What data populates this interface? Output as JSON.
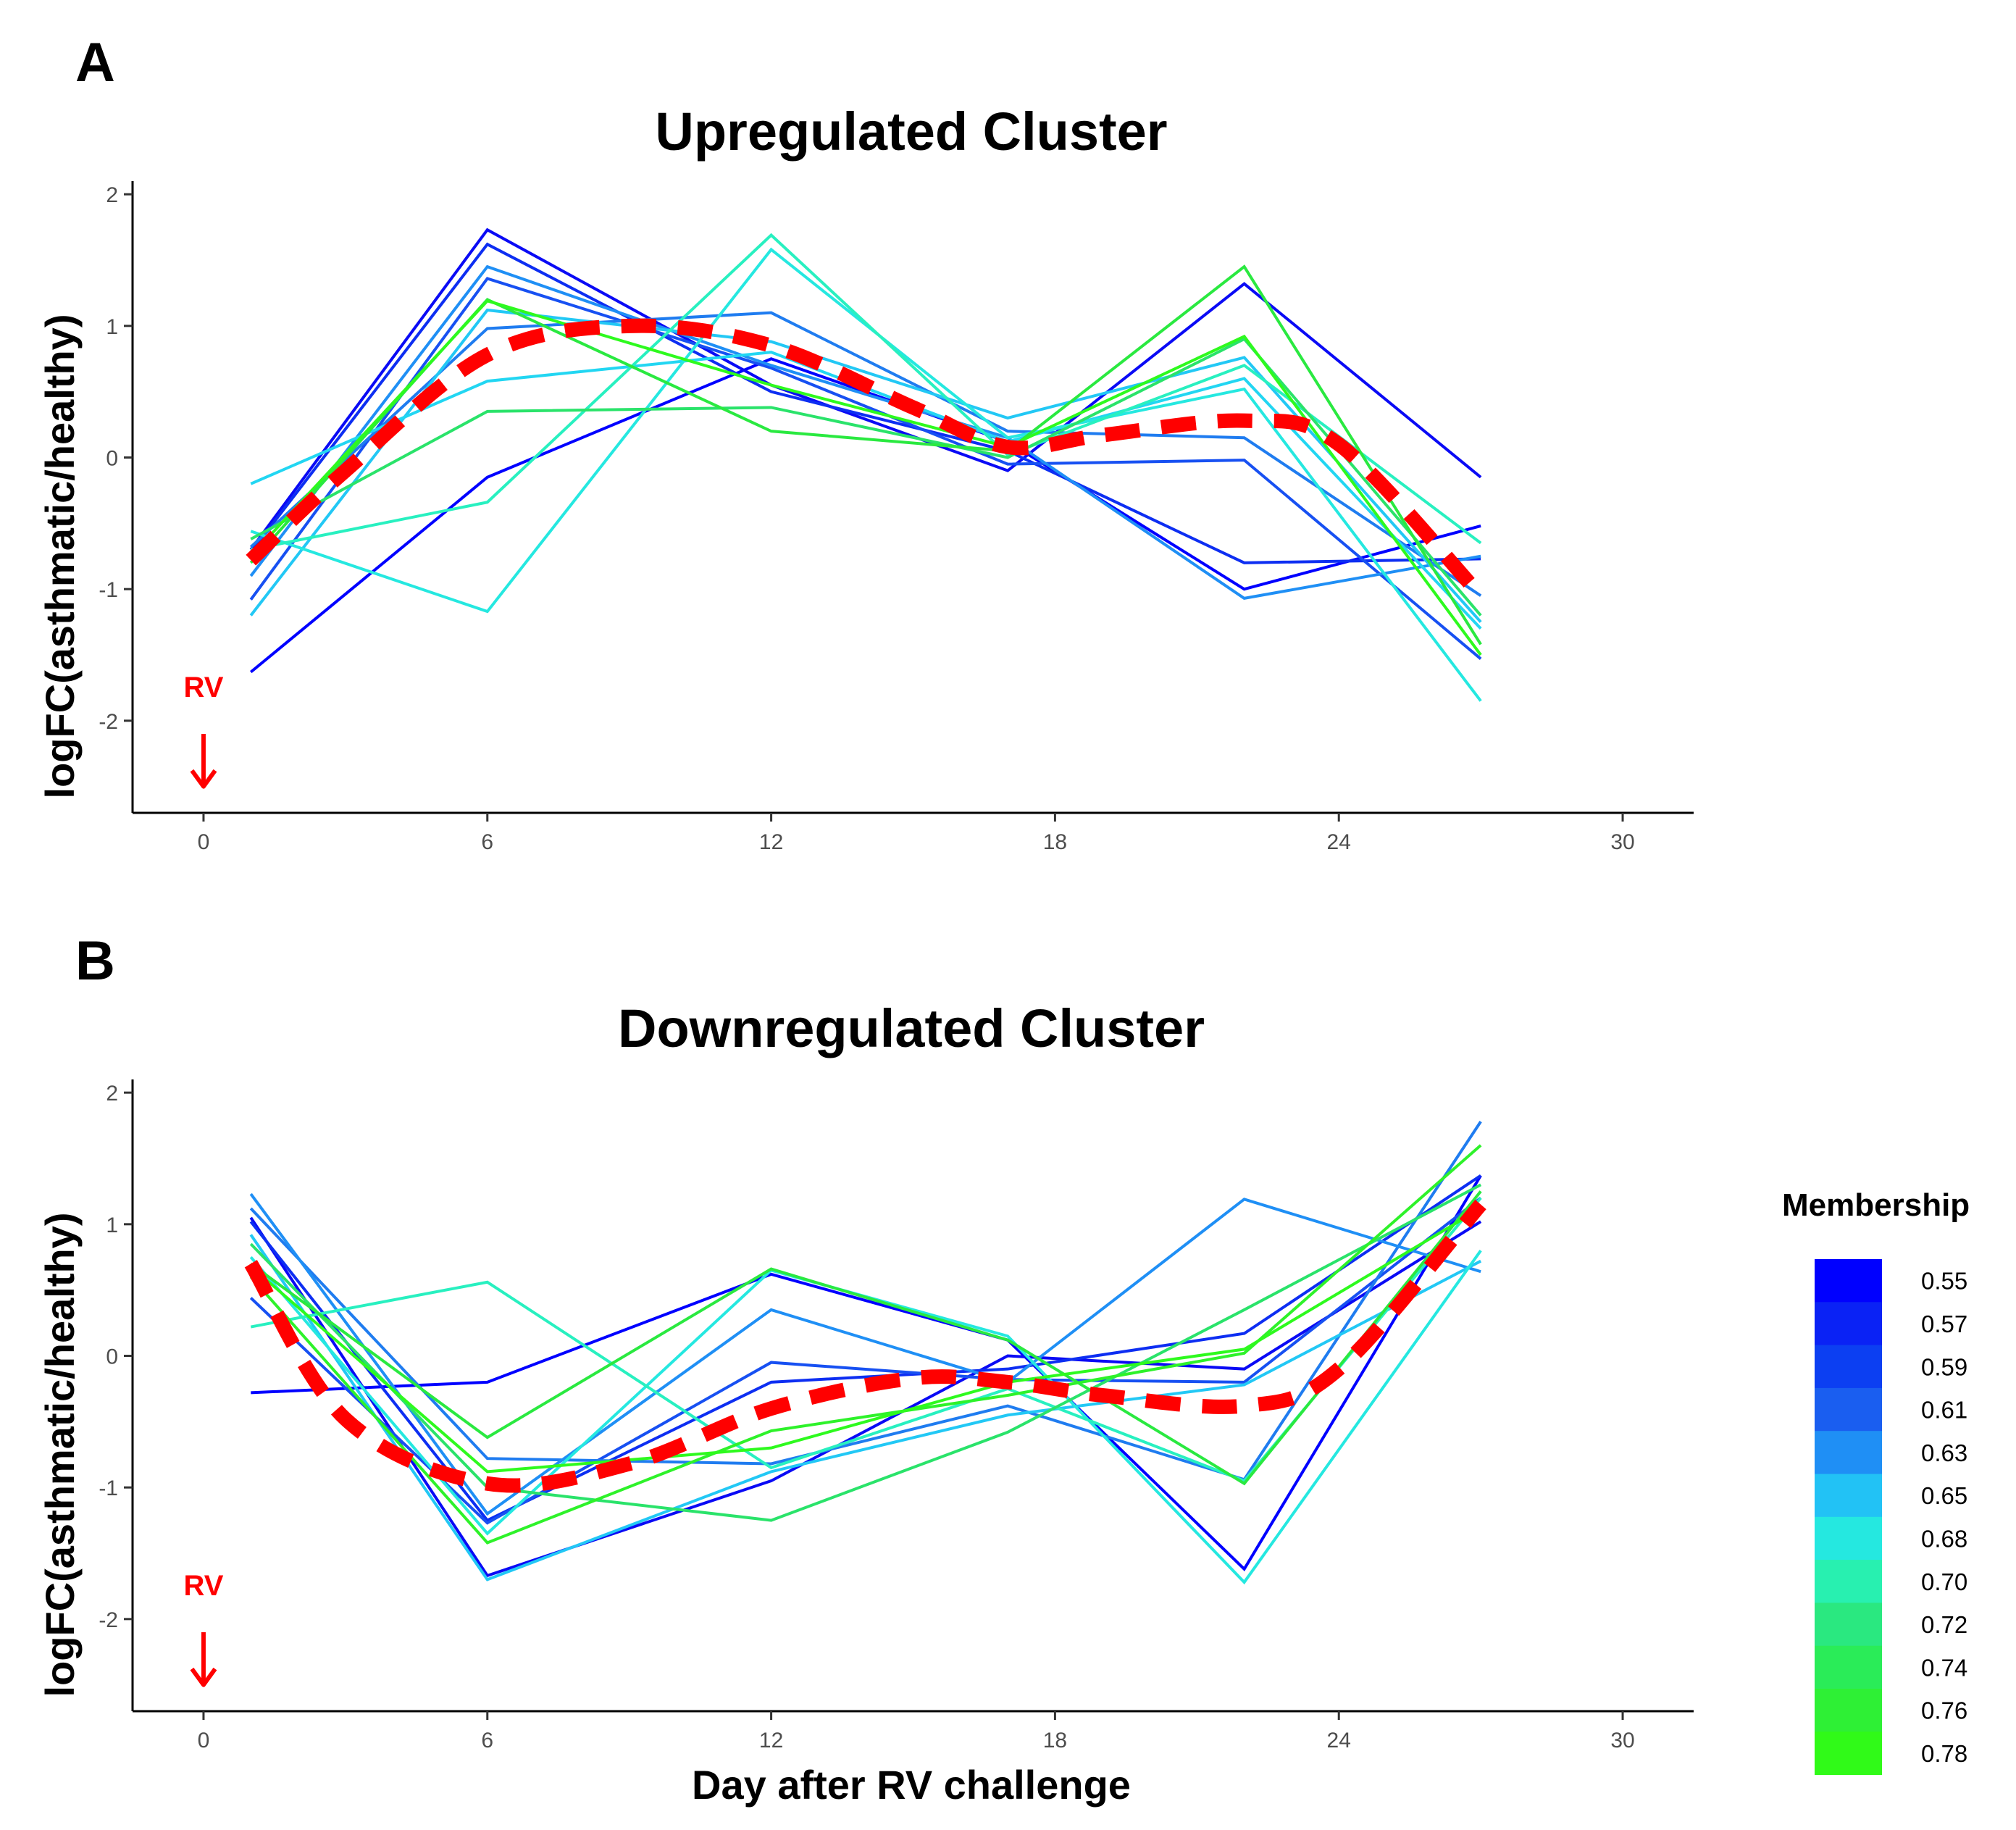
{
  "chart_data": [
    {
      "type": "line",
      "panel_label": "A",
      "title": "Upregulated Cluster",
      "xlabel": "",
      "ylabel": "logFC(asthmatic/healthy)",
      "x": [
        1,
        6,
        12,
        17,
        22,
        27
      ],
      "xticks": [
        0,
        6,
        12,
        18,
        24,
        30
      ],
      "yticks": [
        2,
        1,
        0,
        -1,
        -2
      ],
      "xlim": [
        -1.5,
        31.5
      ],
      "ylim": [
        -2.7,
        2.1
      ],
      "annotation": {
        "label": "RV",
        "x": 0
      },
      "series": [
        {
          "membership": 0.55,
          "color": "#0000ff",
          "values": [
            -1.63,
            -0.15,
            0.75,
            0.12,
            -1.0,
            -0.52
          ]
        },
        {
          "membership": 0.56,
          "color": "#0a0af5",
          "values": [
            -0.7,
            1.73,
            0.55,
            -0.1,
            1.32,
            -0.15
          ]
        },
        {
          "membership": 0.58,
          "color": "#0d2ef2",
          "values": [
            -0.72,
            1.62,
            0.5,
            0.05,
            -0.8,
            -0.77
          ]
        },
        {
          "membership": 0.6,
          "color": "#1750f2",
          "values": [
            -1.08,
            1.36,
            0.68,
            -0.05,
            -0.02,
            -1.53
          ]
        },
        {
          "membership": 0.62,
          "color": "#1f7cf0",
          "values": [
            -0.68,
            0.98,
            1.1,
            0.2,
            0.15,
            -1.05
          ]
        },
        {
          "membership": 0.63,
          "color": "#1f8ff5",
          "values": [
            -0.9,
            1.45,
            0.7,
            0.15,
            -1.07,
            -0.75
          ]
        },
        {
          "membership": 0.65,
          "color": "#22c8f5",
          "values": [
            -1.2,
            1.12,
            0.88,
            0.3,
            0.76,
            -1.25
          ]
        },
        {
          "membership": 0.66,
          "color": "#22d6f2",
          "values": [
            -0.2,
            0.58,
            0.8,
            0.12,
            0.6,
            -1.3
          ]
        },
        {
          "membership": 0.68,
          "color": "#25e8e0",
          "values": [
            -0.56,
            -1.17,
            1.58,
            0.15,
            0.52,
            -1.85
          ]
        },
        {
          "membership": 0.7,
          "color": "#28f0c0",
          "values": [
            -0.7,
            -0.34,
            1.69,
            0.02,
            0.7,
            -0.65
          ]
        },
        {
          "membership": 0.72,
          "color": "#2ae36a",
          "values": [
            -0.62,
            0.35,
            0.38,
            0.0,
            0.9,
            -1.2
          ]
        },
        {
          "membership": 0.75,
          "color": "#2ae940",
          "values": [
            -0.8,
            1.2,
            0.2,
            0.05,
            1.45,
            -1.42
          ]
        },
        {
          "membership": 0.78,
          "color": "#2efa1e",
          "values": [
            -0.75,
            1.19,
            0.55,
            0.08,
            0.92,
            -1.5
          ]
        }
      ],
      "centroid": {
        "color": "#ff0000",
        "style": "dashed",
        "x": [
          1,
          3,
          6,
          9,
          12,
          15,
          17,
          19,
          22,
          24,
          27
        ],
        "values": [
          -0.78,
          -0.1,
          0.78,
          1.0,
          0.85,
          0.38,
          0.08,
          0.17,
          0.28,
          0.1,
          -1.05
        ]
      }
    },
    {
      "type": "line",
      "panel_label": "B",
      "title": "Downregulated Cluster",
      "xlabel": "Day after RV challenge",
      "ylabel": "logFC(asthmatic/healthy)",
      "x": [
        1,
        6,
        12,
        17,
        22,
        27
      ],
      "xticks": [
        0,
        6,
        12,
        18,
        24,
        30
      ],
      "yticks": [
        2,
        1,
        0,
        -1,
        -2
      ],
      "xlim": [
        -1.5,
        31.5
      ],
      "ylim": [
        -2.7,
        2.1
      ],
      "annotation": {
        "label": "RV",
        "x": 0
      },
      "series": [
        {
          "membership": 0.55,
          "color": "#0000ff",
          "values": [
            -0.28,
            -0.2,
            0.62,
            0.12,
            -1.62,
            1.37
          ]
        },
        {
          "membership": 0.56,
          "color": "#0a0af5",
          "values": [
            1.05,
            -1.67,
            -0.95,
            0.0,
            -0.1,
            1.02
          ]
        },
        {
          "membership": 0.58,
          "color": "#0d2ef2",
          "values": [
            1.02,
            -1.25,
            -0.2,
            -0.1,
            0.17,
            1.37
          ]
        },
        {
          "membership": 0.6,
          "color": "#1750f2",
          "values": [
            0.44,
            -1.27,
            -0.05,
            -0.18,
            -0.2,
            1.2
          ]
        },
        {
          "membership": 0.62,
          "color": "#1f7cf0",
          "values": [
            1.12,
            -0.78,
            -0.82,
            -0.38,
            -0.94,
            1.78
          ]
        },
        {
          "membership": 0.63,
          "color": "#1f8ff5",
          "values": [
            1.23,
            -1.2,
            0.35,
            -0.2,
            1.19,
            0.64
          ]
        },
        {
          "membership": 0.65,
          "color": "#22c8f5",
          "values": [
            0.92,
            -1.7,
            -0.88,
            -0.45,
            -0.22,
            0.72
          ]
        },
        {
          "membership": 0.68,
          "color": "#25e8e0",
          "values": [
            0.75,
            -1.35,
            0.65,
            0.15,
            -1.72,
            0.8
          ]
        },
        {
          "membership": 0.7,
          "color": "#28f0c0",
          "values": [
            0.22,
            0.56,
            -0.85,
            -0.25,
            -0.95,
            1.2
          ]
        },
        {
          "membership": 0.72,
          "color": "#2ae36a",
          "values": [
            0.85,
            -1.0,
            -1.25,
            -0.58,
            0.35,
            1.3
          ]
        },
        {
          "membership": 0.74,
          "color": "#2ae940",
          "values": [
            0.7,
            -0.62,
            0.66,
            0.12,
            -0.97,
            1.25
          ]
        },
        {
          "membership": 0.76,
          "color": "#2ef22a",
          "values": [
            0.6,
            -1.42,
            -0.57,
            -0.3,
            0.02,
            1.6
          ]
        },
        {
          "membership": 0.78,
          "color": "#2efa1e",
          "values": [
            0.68,
            -0.88,
            -0.7,
            -0.2,
            0.05,
            1.12
          ]
        }
      ],
      "centroid": {
        "color": "#ff0000",
        "style": "dashed",
        "x": [
          1,
          3,
          6,
          9,
          12,
          15,
          17,
          19,
          22,
          24,
          27
        ],
        "values": [
          0.7,
          -0.48,
          -0.97,
          -0.82,
          -0.4,
          -0.17,
          -0.2,
          -0.3,
          -0.38,
          -0.1,
          1.15
        ]
      }
    }
  ],
  "legend": {
    "title": "Membership",
    "labels": [
      "0.55",
      "0.57",
      "0.59",
      "0.61",
      "0.63",
      "0.65",
      "0.68",
      "0.70",
      "0.72",
      "0.74",
      "0.76",
      "0.78"
    ],
    "colors": [
      "#0000ff",
      "#0a22f5",
      "#0c3ff2",
      "#1a5ef0",
      "#1f8ff5",
      "#22c2f5",
      "#25e8e0",
      "#28f0b0",
      "#2ae880",
      "#2aec58",
      "#2ef035",
      "#30fa18"
    ]
  }
}
